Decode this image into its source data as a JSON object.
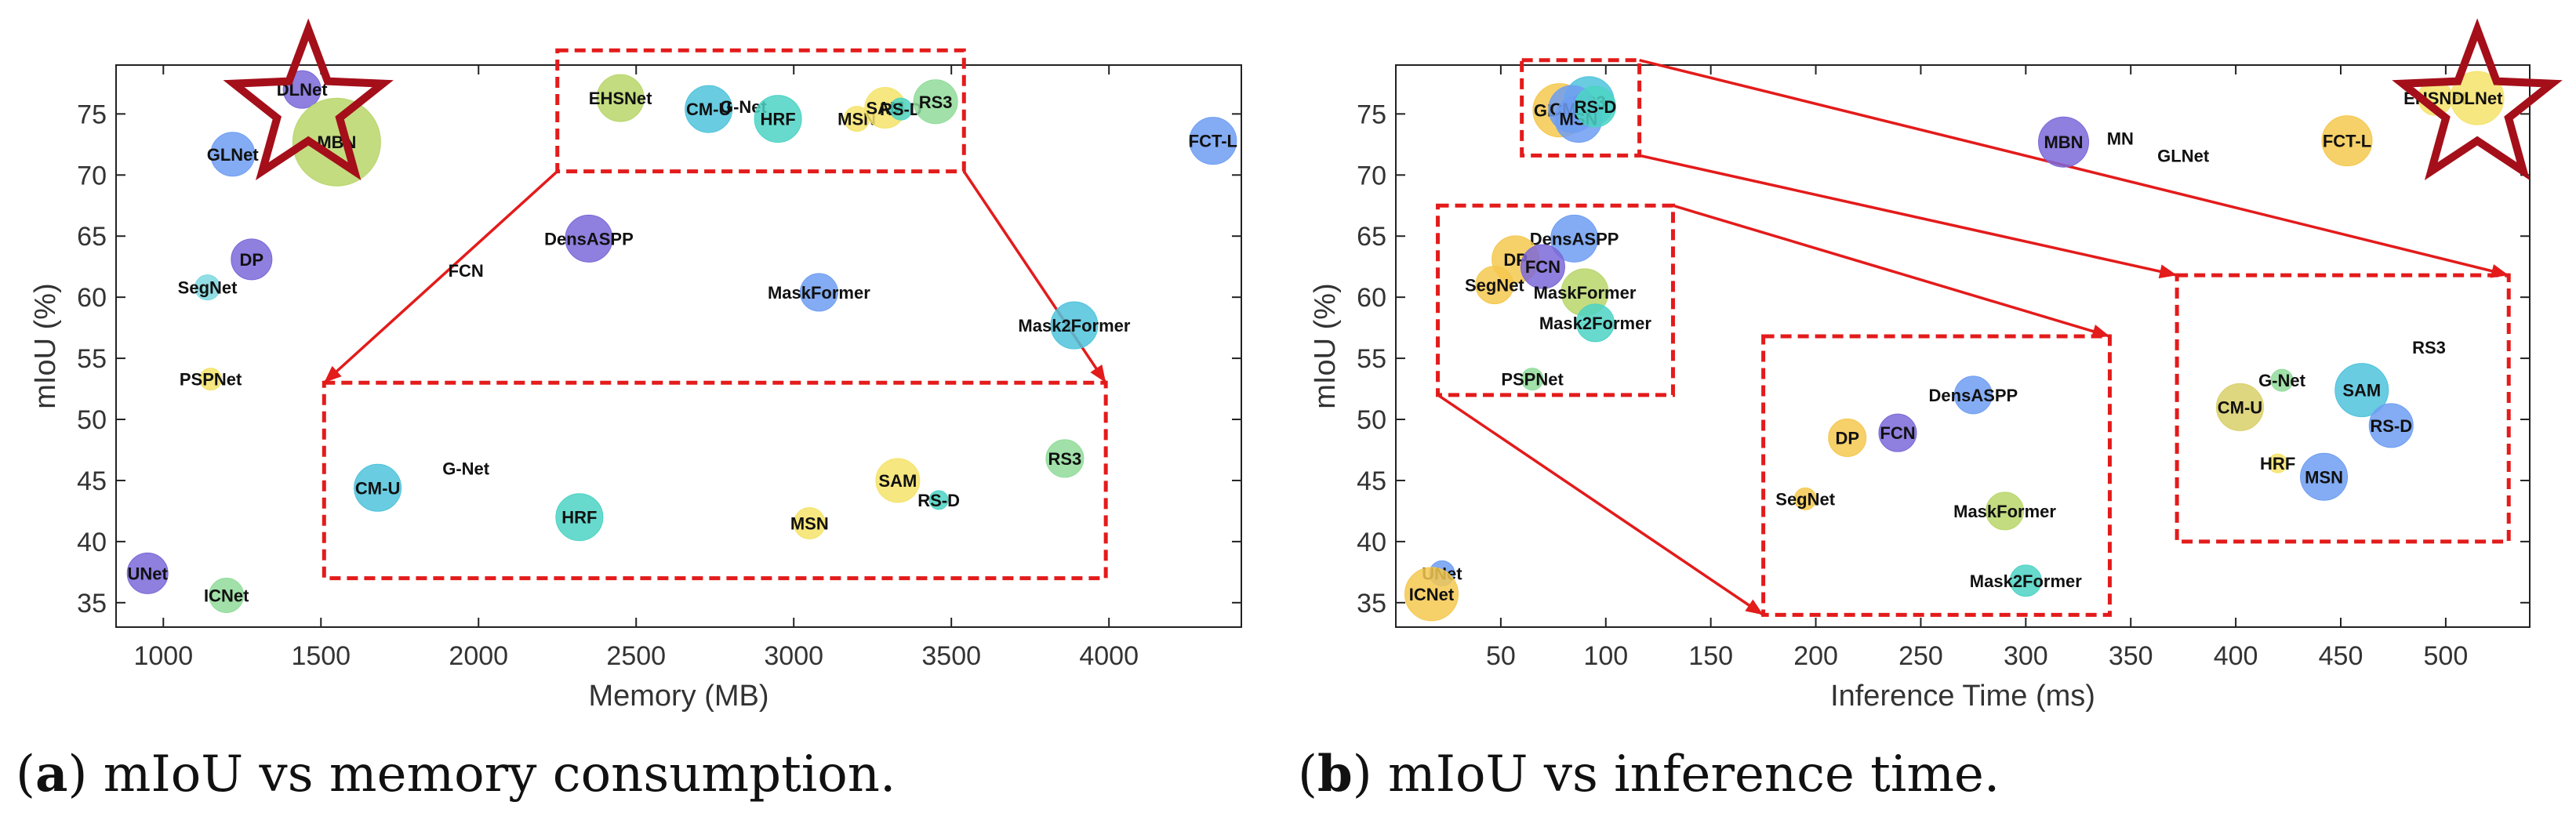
{
  "figure": {
    "captions": [
      {
        "label": "a",
        "text": "mIoU vs memory consumption."
      },
      {
        "label": "b",
        "text": "mIoU vs inference time."
      }
    ]
  },
  "chart_data": [
    {
      "type": "scatter",
      "subtype": "bubble",
      "panel": "a",
      "xlabel": "Memory (MB)",
      "ylabel": "mIoU (%)",
      "xlim": [
        850,
        4420
      ],
      "ylim": [
        33,
        79
      ],
      "xticks": [
        1000,
        1500,
        2000,
        2500,
        3000,
        3500,
        4000
      ],
      "yticks": [
        35,
        40,
        45,
        50,
        55,
        60,
        65,
        70,
        75
      ],
      "grid": false,
      "points": [
        {
          "label": "DLNet",
          "x": 1440,
          "y": 77.0,
          "size": 24,
          "color": "#7b68d8"
        },
        {
          "label": "MBN",
          "x": 1550,
          "y": 72.7,
          "size": 56,
          "color": "#b8d66a"
        },
        {
          "label": "GLNet",
          "x": 1220,
          "y": 71.7,
          "size": 28,
          "color": "#6f9ef2"
        },
        {
          "label": "DP",
          "x": 1280,
          "y": 63.1,
          "size": 26,
          "color": "#7b68d8"
        },
        {
          "label": "SegNet",
          "x": 1140,
          "y": 60.8,
          "size": 16,
          "color": "#7fd8e0"
        },
        {
          "label": "PSPNet",
          "x": 1150,
          "y": 53.3,
          "size": 14,
          "color": "#f4e36a"
        },
        {
          "label": "FCN",
          "x": 1960,
          "y": 62.2,
          "size": 0,
          "color": "#7b68d8"
        },
        {
          "label": "DensASPP",
          "x": 2350,
          "y": 64.8,
          "size": 30,
          "color": "#7b68d8"
        },
        {
          "label": "UNet",
          "x": 950,
          "y": 37.4,
          "size": 26,
          "color": "#7b68d8"
        },
        {
          "label": "ICNet",
          "x": 1200,
          "y": 35.6,
          "size": 22,
          "color": "#90dc9a"
        },
        {
          "label": "EHSNet",
          "x": 2450,
          "y": 76.3,
          "size": 30,
          "color": "#b8d66a"
        },
        {
          "label": "CM-U",
          "x": 2730,
          "y": 75.4,
          "size": 30,
          "color": "#4fc3dc"
        },
        {
          "label": "G-Net",
          "x": 2840,
          "y": 75.6,
          "size": 0,
          "color": "#4fc3dc"
        },
        {
          "label": "HRF",
          "x": 2950,
          "y": 74.6,
          "size": 30,
          "color": "#4cd3c4"
        },
        {
          "label": "MSN",
          "x": 3200,
          "y": 74.6,
          "size": 16,
          "color": "#f4e36a"
        },
        {
          "label": "SAM",
          "x": 3290,
          "y": 75.5,
          "size": 26,
          "color": "#f4e36a"
        },
        {
          "label": "RS-D",
          "x": 3340,
          "y": 75.4,
          "size": 14,
          "color": "#4cd3c4"
        },
        {
          "label": "RS3",
          "x": 3450,
          "y": 76.0,
          "size": 28,
          "color": "#90dc9a"
        },
        {
          "label": "MaskFormer",
          "x": 3080,
          "y": 60.4,
          "size": 24,
          "color": "#6f9ef2"
        },
        {
          "label": "Mask2Former",
          "x": 3890,
          "y": 57.7,
          "size": 30,
          "color": "#4fc3dc"
        },
        {
          "label": "FCT-L",
          "x": 4330,
          "y": 72.8,
          "size": 30,
          "color": "#6f9ef2"
        }
      ],
      "highlight_star": {
        "label": "DLNet",
        "x": 1460,
        "y": 75.5
      },
      "zoom": {
        "source": {
          "x": [
            2250,
            3540
          ],
          "y": [
            70.3,
            80.2
          ]
        },
        "target": {
          "x": [
            1510,
            3990
          ],
          "y": [
            37.0,
            53.0
          ]
        },
        "points": [
          {
            "label": "CM-U",
            "x": 1680,
            "y": 44.4,
            "size": 30,
            "color": "#4fc3dc"
          },
          {
            "label": "G-Net",
            "x": 1960,
            "y": 46.0,
            "size": 0,
            "color": "#4fc3dc"
          },
          {
            "label": "HRF",
            "x": 2320,
            "y": 42.0,
            "size": 30,
            "color": "#4cd3c4"
          },
          {
            "label": "SAM",
            "x": 3330,
            "y": 45.0,
            "size": 28,
            "color": "#f4e36a"
          },
          {
            "label": "RS-D",
            "x": 3460,
            "y": 43.4,
            "size": 12,
            "color": "#4cd3c4"
          },
          {
            "label": "MSN",
            "x": 3050,
            "y": 41.5,
            "size": 20,
            "color": "#f4e36a"
          },
          {
            "label": "RS3",
            "x": 3860,
            "y": 46.8,
            "size": 24,
            "color": "#90dc9a"
          }
        ]
      }
    },
    {
      "type": "scatter",
      "subtype": "bubble",
      "panel": "b",
      "xlabel": "Inference Time (ms)",
      "ylabel": "mIoU (%)",
      "xlim": [
        0,
        540
      ],
      "ylim": [
        33,
        79
      ],
      "xticks": [
        50,
        100,
        150,
        200,
        250,
        300,
        350,
        400,
        450,
        500
      ],
      "yticks": [
        35,
        40,
        45,
        50,
        55,
        60,
        65,
        70,
        75
      ],
      "grid": false,
      "points": [
        {
          "label": "GLNet",
          "x": 78,
          "y": 75.3,
          "size": 34,
          "color": "#f4c84f"
        },
        {
          "label": "RS3",
          "x": 92,
          "y": 76.0,
          "size": 32,
          "color": "#4fc3dc"
        },
        {
          "label": "CM-U",
          "x": 84,
          "y": 75.4,
          "size": 30,
          "color": "#6f9ef2"
        },
        {
          "label": "MSN",
          "x": 87,
          "y": 74.6,
          "size": 30,
          "color": "#6f9ef2"
        },
        {
          "label": "RS-D",
          "x": 95,
          "y": 75.6,
          "size": 26,
          "color": "#4cd3c4"
        },
        {
          "label": "DensASPP",
          "x": 85,
          "y": 64.8,
          "size": 30,
          "color": "#6f9ef2"
        },
        {
          "label": "DP",
          "x": 57,
          "y": 63.1,
          "size": 30,
          "color": "#f4c84f"
        },
        {
          "label": "FCN",
          "x": 70,
          "y": 62.5,
          "size": 28,
          "color": "#7b68d8"
        },
        {
          "label": "SegNet",
          "x": 47,
          "y": 61.0,
          "size": 24,
          "color": "#f4c84f"
        },
        {
          "label": "MaskFormer",
          "x": 90,
          "y": 60.4,
          "size": 30,
          "color": "#b8d66a"
        },
        {
          "label": "Mask2Former",
          "x": 95,
          "y": 57.9,
          "size": 24,
          "color": "#4cd3c4"
        },
        {
          "label": "PSPNet",
          "x": 65,
          "y": 53.3,
          "size": 14,
          "color": "#90dc9a"
        },
        {
          "label": "UNet",
          "x": 22,
          "y": 37.4,
          "size": 16,
          "color": "#6f9ef2"
        },
        {
          "label": "ICNet",
          "x": 17,
          "y": 35.7,
          "size": 34,
          "color": "#f4c84f"
        },
        {
          "label": "MBN",
          "x": 318,
          "y": 72.7,
          "size": 32,
          "color": "#7b68d8"
        },
        {
          "label": "MN",
          "x": 345,
          "y": 73.0,
          "size": 0,
          "color": "#7b68d8"
        },
        {
          "label": "GLNet",
          "x": 375,
          "y": 71.6,
          "size": 0,
          "color": "#7b68d8"
        },
        {
          "label": "FCT-L",
          "x": 453,
          "y": 72.8,
          "size": 32,
          "color": "#f4c84f"
        },
        {
          "label": "EHSNet",
          "x": 495,
          "y": 76.3,
          "size": 22,
          "color": "#f4e36a"
        },
        {
          "label": "DLNet",
          "x": 515,
          "y": 76.3,
          "size": 34,
          "color": "#f4e36a"
        }
      ],
      "highlight_star": {
        "label": "DLNet",
        "x": 515,
        "y": 75.5
      },
      "zooms": [
        {
          "source": {
            "x": [
              60,
              116
            ],
            "y": [
              71.6,
              79.4
            ]
          },
          "target": {
            "x": [
              372,
              530
            ],
            "y": [
              40.0,
              61.8
            ]
          },
          "points": [
            {
              "label": "CM-U",
              "x": 402,
              "y": 51.0,
              "size": 30,
              "color": "#d9cf6a"
            },
            {
              "label": "G-Net",
              "x": 422,
              "y": 53.2,
              "size": 14,
              "color": "#90dc9a"
            },
            {
              "label": "SAM",
              "x": 460,
              "y": 52.4,
              "size": 34,
              "color": "#4fc3dc"
            },
            {
              "label": "RS-D",
              "x": 474,
              "y": 49.5,
              "size": 28,
              "color": "#6f9ef2"
            },
            {
              "label": "RS3",
              "x": 492,
              "y": 55.9,
              "size": 0,
              "color": "#f4e36a"
            },
            {
              "label": "HRF",
              "x": 420,
              "y": 46.4,
              "size": 12,
              "color": "#f4e36a"
            },
            {
              "label": "MSN",
              "x": 442,
              "y": 45.3,
              "size": 30,
              "color": "#6f9ef2"
            }
          ]
        },
        {
          "source": {
            "x": [
              20,
              132
            ],
            "y": [
              52.0,
              67.5
            ]
          },
          "target": {
            "x": [
              175,
              340
            ],
            "y": [
              34.0,
              56.8
            ]
          },
          "points": [
            {
              "label": "DensASPP",
              "x": 275,
              "y": 52.0,
              "size": 24,
              "color": "#6f9ef2"
            },
            {
              "label": "DP",
              "x": 215,
              "y": 48.5,
              "size": 24,
              "color": "#f4c84f"
            },
            {
              "label": "FCN",
              "x": 239,
              "y": 48.9,
              "size": 24,
              "color": "#7b68d8"
            },
            {
              "label": "SegNet",
              "x": 195,
              "y": 43.5,
              "size": 14,
              "color": "#f4c84f"
            },
            {
              "label": "MaskFormer",
              "x": 290,
              "y": 42.5,
              "size": 24,
              "color": "#b8d66a"
            },
            {
              "label": "Mask2Former",
              "x": 300,
              "y": 36.8,
              "size": 20,
              "color": "#4cd3c4"
            }
          ]
        }
      ]
    }
  ]
}
